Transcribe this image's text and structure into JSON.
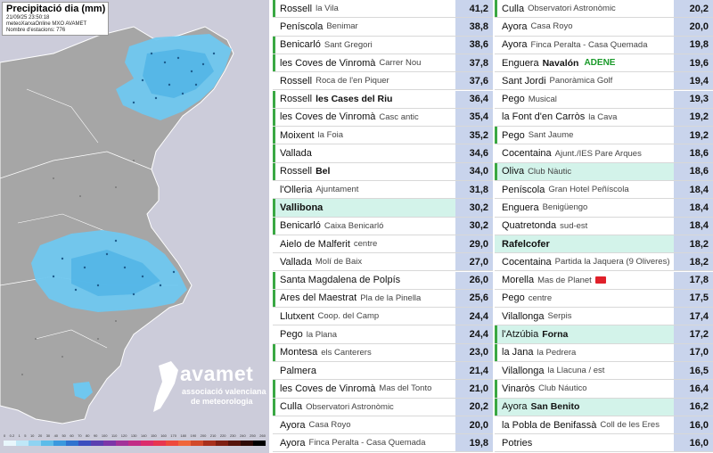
{
  "map": {
    "title": "Precipitació dia (mm)",
    "timestamp": "21/09/25 23:50:18",
    "source": "meteoXarxaOnline MXO AVAMET",
    "stations": "Nombre d'estacions: 776",
    "scale_labels": [
      "0",
      "0.2",
      "1",
      "5",
      "10",
      "20",
      "30",
      "40",
      "50",
      "60",
      "70",
      "80",
      "90",
      "100",
      "110",
      "120",
      "130",
      "140",
      "150",
      "160",
      "170",
      "180",
      "190",
      "200",
      "210",
      "220",
      "230",
      "240",
      "250",
      "260"
    ],
    "brand": {
      "name": "avamet",
      "line1": "associació valenciana",
      "line2": "de meteorologia"
    },
    "colors": {
      "background": "#ccccda",
      "land": "#a4a4a4",
      "rain": "#6fc7ef"
    }
  },
  "columns": [
    {
      "rows": [
        {
          "town": "Rossell",
          "sub": "la Vila",
          "value": "41,2",
          "mark": true,
          "hl": false
        },
        {
          "town": "Peníscola",
          "sub": "Benimar",
          "value": "38,8",
          "mark": false,
          "hl": false
        },
        {
          "town": "Benicarló",
          "sub": "Sant Gregori",
          "value": "38,6",
          "mark": true,
          "hl": false
        },
        {
          "town": "les Coves de Vinromà",
          "sub": "Carrer Nou",
          "value": "37,8",
          "mark": true,
          "hl": false
        },
        {
          "town": "Rossell",
          "sub": "Roca de l'en Piquer",
          "value": "37,6",
          "mark": false,
          "hl": false
        },
        {
          "town": "Rossell",
          "sub": "les Cases del Riu",
          "sub_bold": true,
          "value": "36,4",
          "mark": true,
          "hl": false
        },
        {
          "town": "les Coves de Vinromà",
          "sub": "Casc antic",
          "value": "35,4",
          "mark": true,
          "hl": false
        },
        {
          "town": "Moixent",
          "sub": "la Foia",
          "value": "35,2",
          "mark": true,
          "hl": false
        },
        {
          "town": "Vallada",
          "sub": "",
          "value": "34,6",
          "mark": true,
          "hl": false
        },
        {
          "town": "Rossell",
          "sub": "Bel",
          "sub_bold": true,
          "value": "34,0",
          "mark": true,
          "hl": false
        },
        {
          "town": "l'Olleria",
          "sub": "Ajuntament",
          "value": "31,8",
          "mark": false,
          "hl": false
        },
        {
          "town": "Vallibona",
          "sub": "",
          "value": "30,2",
          "mark": true,
          "hl": true,
          "bold": true
        },
        {
          "town": "Benicarló",
          "sub": "Caixa Benicarló",
          "value": "30,2",
          "mark": true,
          "hl": false
        },
        {
          "town": "Aielo de Malferit",
          "sub": "centre",
          "value": "29,0",
          "mark": false,
          "hl": false
        },
        {
          "town": "Vallada",
          "sub": "Molí de Baix",
          "value": "27,0",
          "mark": false,
          "hl": false
        },
        {
          "town": "Santa Magdalena de Polpís",
          "sub": "",
          "value": "26,0",
          "mark": true,
          "hl": false
        },
        {
          "town": "Ares del Maestrat",
          "sub": "Pla de la Pinella",
          "value": "25,6",
          "mark": true,
          "hl": false
        },
        {
          "town": "Llutxent",
          "sub": "Coop. del Camp",
          "value": "24,4",
          "mark": false,
          "hl": false
        },
        {
          "town": "Pego",
          "sub": "la Plana",
          "value": "24,4",
          "mark": false,
          "hl": false
        },
        {
          "town": "Montesa",
          "sub": "els Canterers",
          "value": "23,0",
          "mark": true,
          "hl": false
        },
        {
          "town": "Palmera",
          "sub": "",
          "value": "21,4",
          "mark": false,
          "hl": false
        },
        {
          "town": "les Coves de Vinromà",
          "sub": "Mas del Tonto",
          "value": "21,0",
          "mark": true,
          "hl": false
        },
        {
          "town": "Culla",
          "sub": "Observatori Astronòmic",
          "value": "20,2",
          "mark": true,
          "hl": false
        },
        {
          "town": "Ayora",
          "sub": "Casa Royo",
          "value": "20,0",
          "mark": false,
          "hl": false
        },
        {
          "town": "Ayora",
          "sub": "Finca Peralta - Casa Quemada",
          "value": "19,8",
          "mark": false,
          "hl": false
        }
      ]
    },
    {
      "rows": [
        {
          "town": "Culla",
          "sub": "Observatori Astronòmic",
          "value": "20,2",
          "mark": true,
          "hl": false
        },
        {
          "town": "Ayora",
          "sub": "Casa Royo",
          "value": "20,0",
          "mark": false,
          "hl": false
        },
        {
          "town": "Ayora",
          "sub": "Finca Peralta - Casa Quemada",
          "value": "19,8",
          "mark": false,
          "hl": false
        },
        {
          "town": "Enguera",
          "sub": "Navalón",
          "sub_bold": true,
          "extra": "ADENE",
          "value": "19,6",
          "mark": false,
          "hl": false
        },
        {
          "town": "Sant Jordi",
          "sub": "Panoràmica Golf",
          "value": "19,4",
          "mark": false,
          "hl": false
        },
        {
          "town": "Pego",
          "sub": "Musical",
          "value": "19,3",
          "mark": false,
          "hl": false
        },
        {
          "town": "la Font d'en Carròs",
          "sub": "la Cava",
          "value": "19,2",
          "mark": false,
          "hl": false
        },
        {
          "town": "Pego",
          "sub": "Sant Jaume",
          "value": "19,2",
          "mark": true,
          "hl": false
        },
        {
          "town": "Cocentaina",
          "sub": "Ajunt./IES Pare Arques",
          "value": "18,6",
          "mark": false,
          "hl": false
        },
        {
          "town": "Oliva",
          "sub": "Club Nàutic",
          "value": "18,6",
          "mark": true,
          "hl": true
        },
        {
          "town": "Peníscola",
          "sub": "Gran Hotel Peñíscola",
          "value": "18,4",
          "mark": false,
          "hl": false
        },
        {
          "town": "Enguera",
          "sub": "Benigüengo",
          "value": "18,4",
          "mark": false,
          "hl": false
        },
        {
          "town": "Quatretonda",
          "sub": "sud-est",
          "value": "18,4",
          "mark": false,
          "hl": false
        },
        {
          "town": "Rafelcofer",
          "sub": "",
          "value": "18,2",
          "mark": false,
          "hl": true,
          "bold": true
        },
        {
          "town": "Cocentaina",
          "sub": "Partida la Jaquera (9 Oliveres)",
          "value": "18,2",
          "mark": false,
          "hl": false
        },
        {
          "town": "Morella",
          "sub": "Mas de Planet",
          "badge": true,
          "value": "17,8",
          "mark": false,
          "hl": false
        },
        {
          "town": "Pego",
          "sub": "centre",
          "value": "17,5",
          "mark": false,
          "hl": false
        },
        {
          "town": "Vilallonga",
          "sub": "Serpis",
          "value": "17,4",
          "mark": false,
          "hl": false
        },
        {
          "town": "l'Atzúbia",
          "sub": "Forna",
          "sub_bold": true,
          "value": "17,2",
          "mark": true,
          "hl": true
        },
        {
          "town": "la Jana",
          "sub": "la Pedrera",
          "value": "17,0",
          "mark": true,
          "hl": false
        },
        {
          "town": "Vilallonga",
          "sub": "la Llacuna / est",
          "value": "16,5",
          "mark": false,
          "hl": false
        },
        {
          "town": "Vinaròs",
          "sub": "Club Náutico",
          "value": "16,4",
          "mark": true,
          "hl": false
        },
        {
          "town": "Ayora",
          "sub": "San Benito",
          "sub_bold": true,
          "value": "16,2",
          "mark": true,
          "hl": true
        },
        {
          "town": "la Pobla de Benifassà",
          "sub": "Coll de les Eres",
          "value": "16,0",
          "mark": false,
          "hl": false
        },
        {
          "town": "Potries",
          "sub": "",
          "value": "16,0",
          "mark": false,
          "hl": false
        }
      ]
    }
  ]
}
